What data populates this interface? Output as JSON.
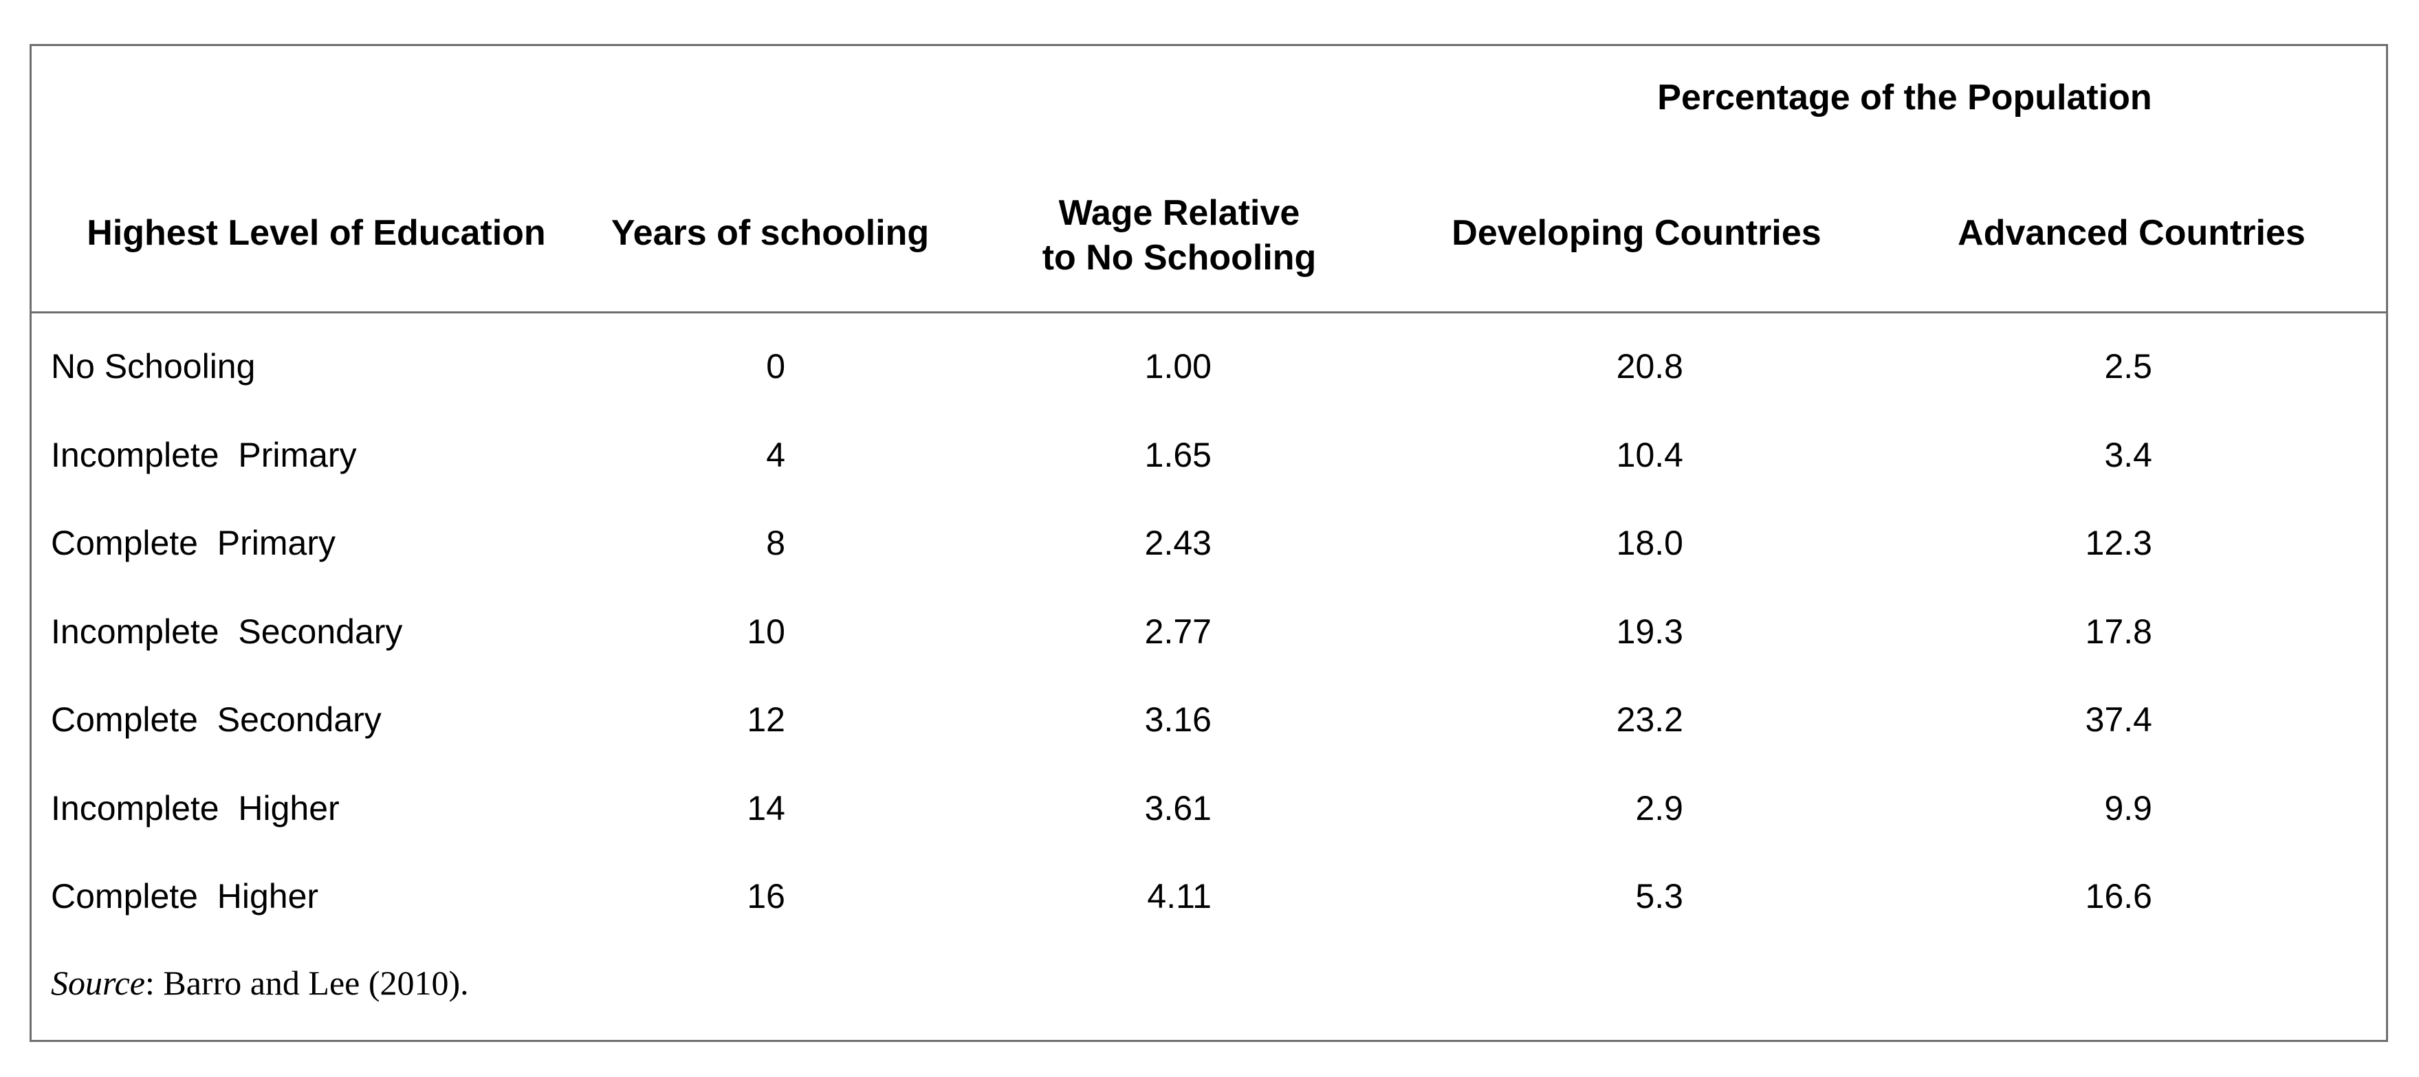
{
  "table": {
    "group_header": "Percentage of the Population",
    "columns": [
      "Highest Level of Education",
      "Years of schooling",
      "Wage Relative",
      "to No Schooling",
      "Developing Countries",
      "Advanced Countries"
    ],
    "rows": [
      {
        "education": "No Schooling",
        "years": "0",
        "wage": "1.00",
        "developing": "20.8",
        "advanced": "2.5"
      },
      {
        "education": "Incomplete  Primary",
        "years": "4",
        "wage": "1.65",
        "developing": "10.4",
        "advanced": "3.4"
      },
      {
        "education": "Complete  Primary",
        "years": "8",
        "wage": "2.43",
        "developing": "18.0",
        "advanced": "12.3"
      },
      {
        "education": "Incomplete  Secondary",
        "years": "10",
        "wage": "2.77",
        "developing": "19.3",
        "advanced": "17.8"
      },
      {
        "education": "Complete  Secondary",
        "years": "12",
        "wage": "3.16",
        "developing": "23.2",
        "advanced": "37.4"
      },
      {
        "education": "Incomplete  Higher",
        "years": "14",
        "wage": "3.61",
        "developing": "2.9",
        "advanced": "9.9"
      },
      {
        "education": "Complete  Higher",
        "years": "16",
        "wage": "4.11",
        "developing": "5.3",
        "advanced": "16.6"
      }
    ],
    "source_label": "Source",
    "source_text": ": Barro and Lee (2010)."
  }
}
